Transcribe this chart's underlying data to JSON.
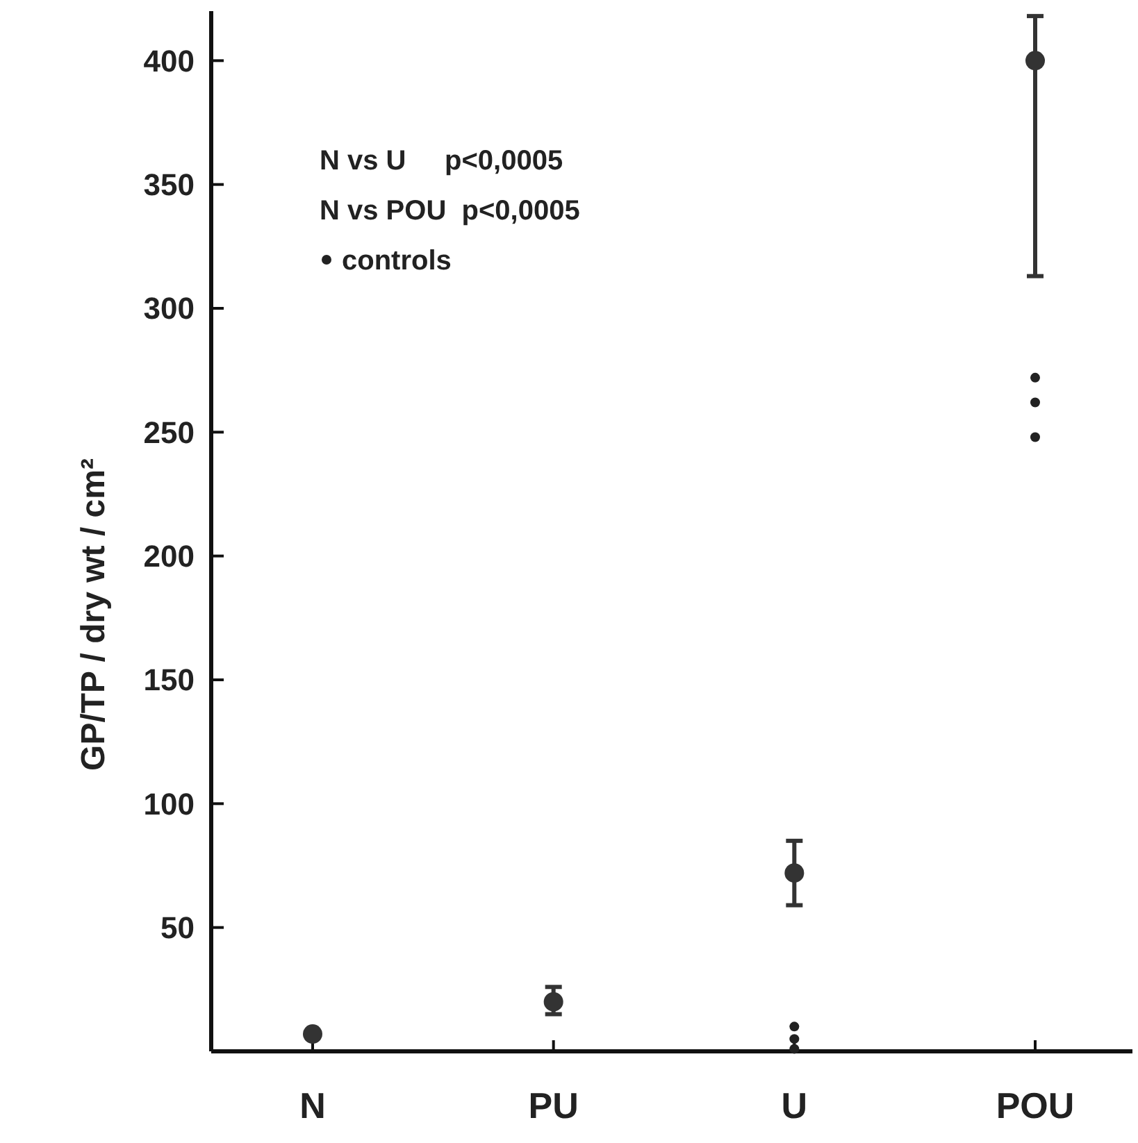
{
  "chart_data": {
    "type": "scatter",
    "ylabel": "GP/TP / dry wt / cm²",
    "categories": [
      "N",
      "PU",
      "U",
      "POU"
    ],
    "ylim": [
      0,
      420
    ],
    "yticks": [
      50,
      100,
      150,
      200,
      250,
      300,
      350,
      400
    ],
    "legend": "top left",
    "grid": false,
    "annotations": [
      "N vs U     p<0,0005",
      "N vs POU  p<0,0005"
    ],
    "series": [
      {
        "color": "#333333",
        "marker": "circle",
        "x": [
          "N",
          "PU",
          "U",
          "POU"
        ],
        "values": [
          7,
          20,
          72,
          400
        ],
        "errors": [
          null,
          [
            15,
            26
          ],
          [
            59,
            85
          ],
          [
            313,
            418
          ]
        ]
      },
      {
        "name": "controls",
        "color": "#222222",
        "marker": "circle",
        "x": [
          "U",
          "U",
          "U",
          "POU",
          "POU",
          "POU"
        ],
        "values": [
          10,
          5,
          1,
          272,
          262,
          248
        ]
      }
    ]
  }
}
